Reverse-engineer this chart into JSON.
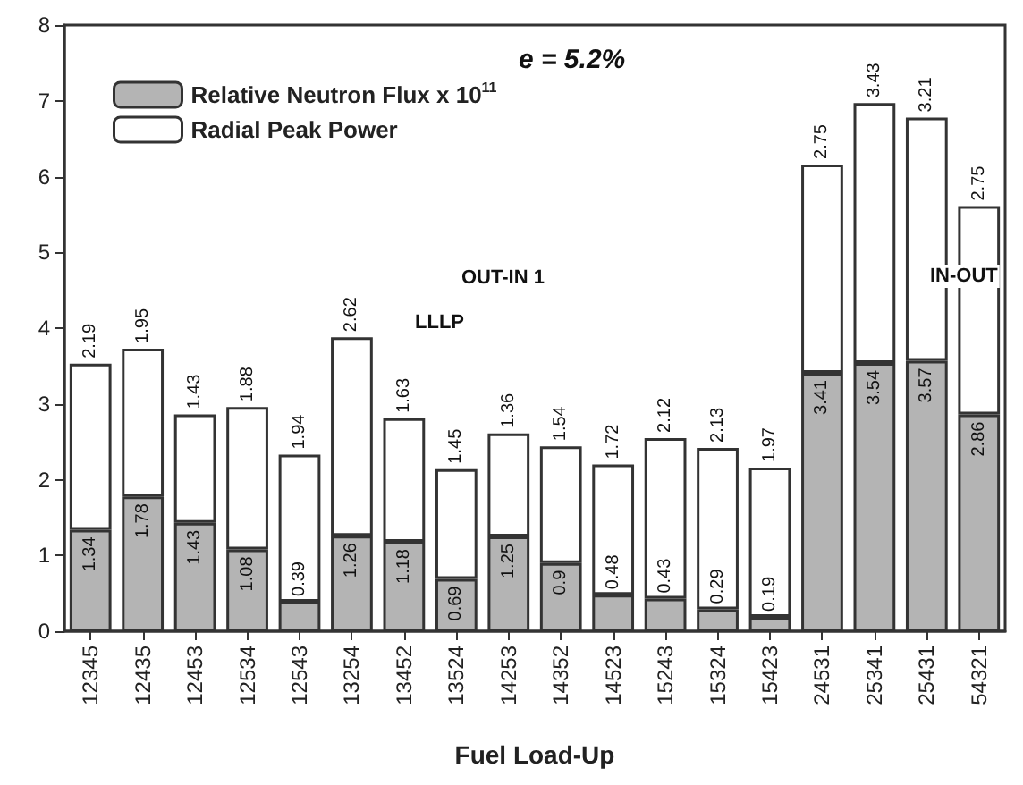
{
  "chart_data": {
    "type": "bar",
    "stacked": true,
    "xlabel": "Fuel Load-Up",
    "categories": [
      "12345",
      "12435",
      "12453",
      "12534",
      "12543",
      "13254",
      "13452",
      "13524",
      "14253",
      "14352",
      "14523",
      "15243",
      "15324",
      "15423",
      "24531",
      "25341",
      "25431",
      "54321"
    ],
    "series": [
      {
        "name": "Relative Neutron Flux x 10$^{11}$",
        "color": "#b4b4b4",
        "values": [
          1.34,
          1.78,
          1.43,
          1.08,
          0.39,
          1.26,
          1.18,
          0.69,
          1.25,
          0.9,
          0.48,
          0.43,
          0.29,
          0.19,
          3.41,
          3.54,
          3.57,
          2.86
        ]
      },
      {
        "name": "Radial Peak Power",
        "color": "#ffffff",
        "values": [
          2.19,
          1.95,
          1.43,
          1.88,
          1.94,
          2.62,
          1.63,
          1.45,
          1.36,
          1.54,
          1.72,
          2.12,
          2.13,
          1.97,
          2.75,
          3.43,
          3.21,
          2.75
        ]
      }
    ],
    "ylim": [
      0,
      8
    ],
    "yticks": [
      0,
      1,
      2,
      3,
      4,
      5,
      6,
      7,
      8
    ],
    "grid": false,
    "legend": "top left",
    "data_labels": true,
    "annotations": [
      "e = 5.2%",
      "OUT-IN 1",
      "LLLP",
      "IN-OUT"
    ]
  }
}
